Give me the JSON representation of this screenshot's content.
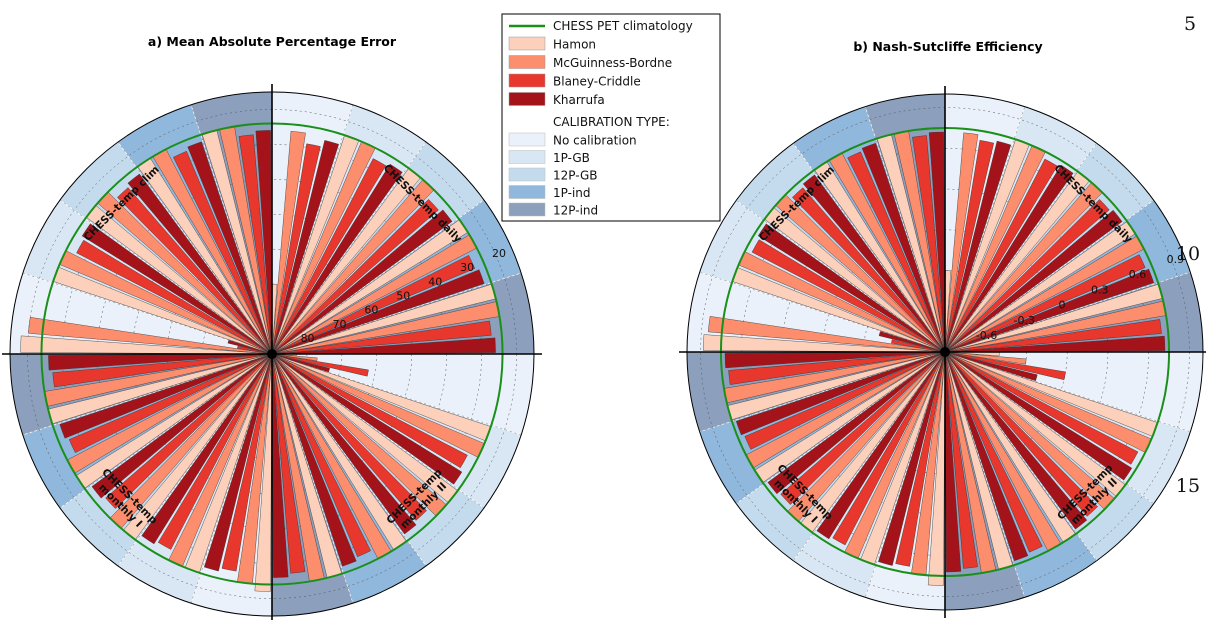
{
  "line_numbers": [
    "5",
    "10",
    "15"
  ],
  "legend": {
    "line_label": "CHESS PET climatology",
    "line_color": "#1a8f1a",
    "methods": [
      {
        "name": "Hamon",
        "color": "#fcd0ba"
      },
      {
        "name": "McGuinness-Bordne",
        "color": "#fc8e6e"
      },
      {
        "name": "Blaney-Criddle",
        "color": "#e8372c"
      },
      {
        "name": "Kharrufa",
        "color": "#a5131a"
      }
    ],
    "calibration_title": "CALIBRATION TYPE:",
    "calibration_types": [
      {
        "name": "No calibration",
        "color": "#eaf1fa"
      },
      {
        "name": "1P-GB",
        "color": "#d9e7f5"
      },
      {
        "name": "12P-GB",
        "color": "#c4dbee"
      },
      {
        "name": "1P-ind",
        "color": "#90b7dc"
      },
      {
        "name": "12P-ind",
        "color": "#8c9fbd"
      }
    ]
  },
  "chart_data": [
    {
      "type": "polar-bar",
      "title": "a) Mean Absolute Percentage Error",
      "radial_ticks": [
        "20",
        "30",
        "40",
        "50",
        "60",
        "70",
        "80"
      ],
      "radial_axis_inverted": true,
      "r_range": [
        90,
        15
      ],
      "climatology_value": 24,
      "sections": [
        "CHESS-temp daily",
        "CHESS-temp monthly II",
        "CHESS-temp monthly I",
        "CHESS-temp clim"
      ],
      "calibration_order": [
        "No calibration",
        "1P-GB",
        "12P-GB",
        "1P-ind",
        "12P-ind"
      ],
      "series": [
        {
          "name": "Hamon",
          "values": [
            70,
            24,
            24,
            24,
            24,
            83,
            24,
            24,
            24,
            24,
            22,
            24,
            24,
            24,
            24,
            18,
            24,
            24,
            24,
            24
          ]
        },
        {
          "name": "McGuinness-Bordne",
          "values": [
            26,
            24,
            24,
            24,
            24,
            77,
            24,
            24,
            24,
            24,
            24,
            24,
            24,
            24,
            24,
            20,
            24,
            24,
            24,
            24
          ]
        },
        {
          "name": "Blaney-Criddle",
          "values": [
            29,
            27,
            27,
            27,
            27,
            62,
            27,
            27,
            27,
            27,
            27,
            27,
            27,
            27,
            27,
            80,
            27,
            27,
            27,
            27
          ]
        },
        {
          "name": "Kharrufa",
          "values": [
            27,
            26,
            26,
            26,
            26,
            73,
            26,
            26,
            26,
            26,
            26,
            26,
            26,
            26,
            26,
            77,
            26,
            26,
            26,
            26
          ]
        }
      ]
    },
    {
      "type": "polar-bar",
      "title": "b) Nash-Sutcliffe Efficiency",
      "radial_ticks": [
        "0.9",
        "0.6",
        "0.3",
        "0",
        "-0.3",
        "-0.6"
      ],
      "radial_axis_inverted": false,
      "r_range": [
        -0.9,
        1.0
      ],
      "climatology_value": 0.75,
      "sections": [
        "CHESS-temp daily",
        "CHESS-temp monthly II",
        "CHESS-temp monthly I",
        "CHESS-temp clim"
      ],
      "calibration_order": [
        "No calibration",
        "1P-GB",
        "12P-GB",
        "1P-ind",
        "12P-ind"
      ],
      "series": [
        {
          "name": "Hamon",
          "values": [
            -0.3,
            0.75,
            0.75,
            0.75,
            0.75,
            -0.5,
            0.75,
            0.75,
            0.75,
            0.75,
            0.82,
            0.75,
            0.75,
            0.75,
            0.75,
            0.88,
            0.75,
            0.75,
            0.75,
            0.75
          ]
        },
        {
          "name": "McGuinness-Bordne",
          "values": [
            0.72,
            0.75,
            0.75,
            0.75,
            0.75,
            -0.3,
            0.75,
            0.75,
            0.75,
            0.75,
            0.75,
            0.75,
            0.75,
            0.75,
            0.75,
            0.85,
            0.75,
            0.75,
            0.75,
            0.75
          ]
        },
        {
          "name": "Blaney-Criddle",
          "values": [
            0.68,
            0.7,
            0.7,
            0.7,
            0.7,
            0.0,
            0.7,
            0.7,
            0.7,
            0.7,
            0.7,
            0.7,
            0.7,
            0.7,
            0.7,
            -0.5,
            0.7,
            0.7,
            0.7,
            0.7
          ]
        },
        {
          "name": "Kharrufa",
          "values": [
            0.7,
            0.72,
            0.72,
            0.72,
            0.72,
            -0.2,
            0.72,
            0.72,
            0.72,
            0.72,
            0.72,
            0.72,
            0.72,
            0.72,
            0.72,
            -0.4,
            0.72,
            0.72,
            0.72,
            0.72
          ]
        }
      ]
    }
  ]
}
